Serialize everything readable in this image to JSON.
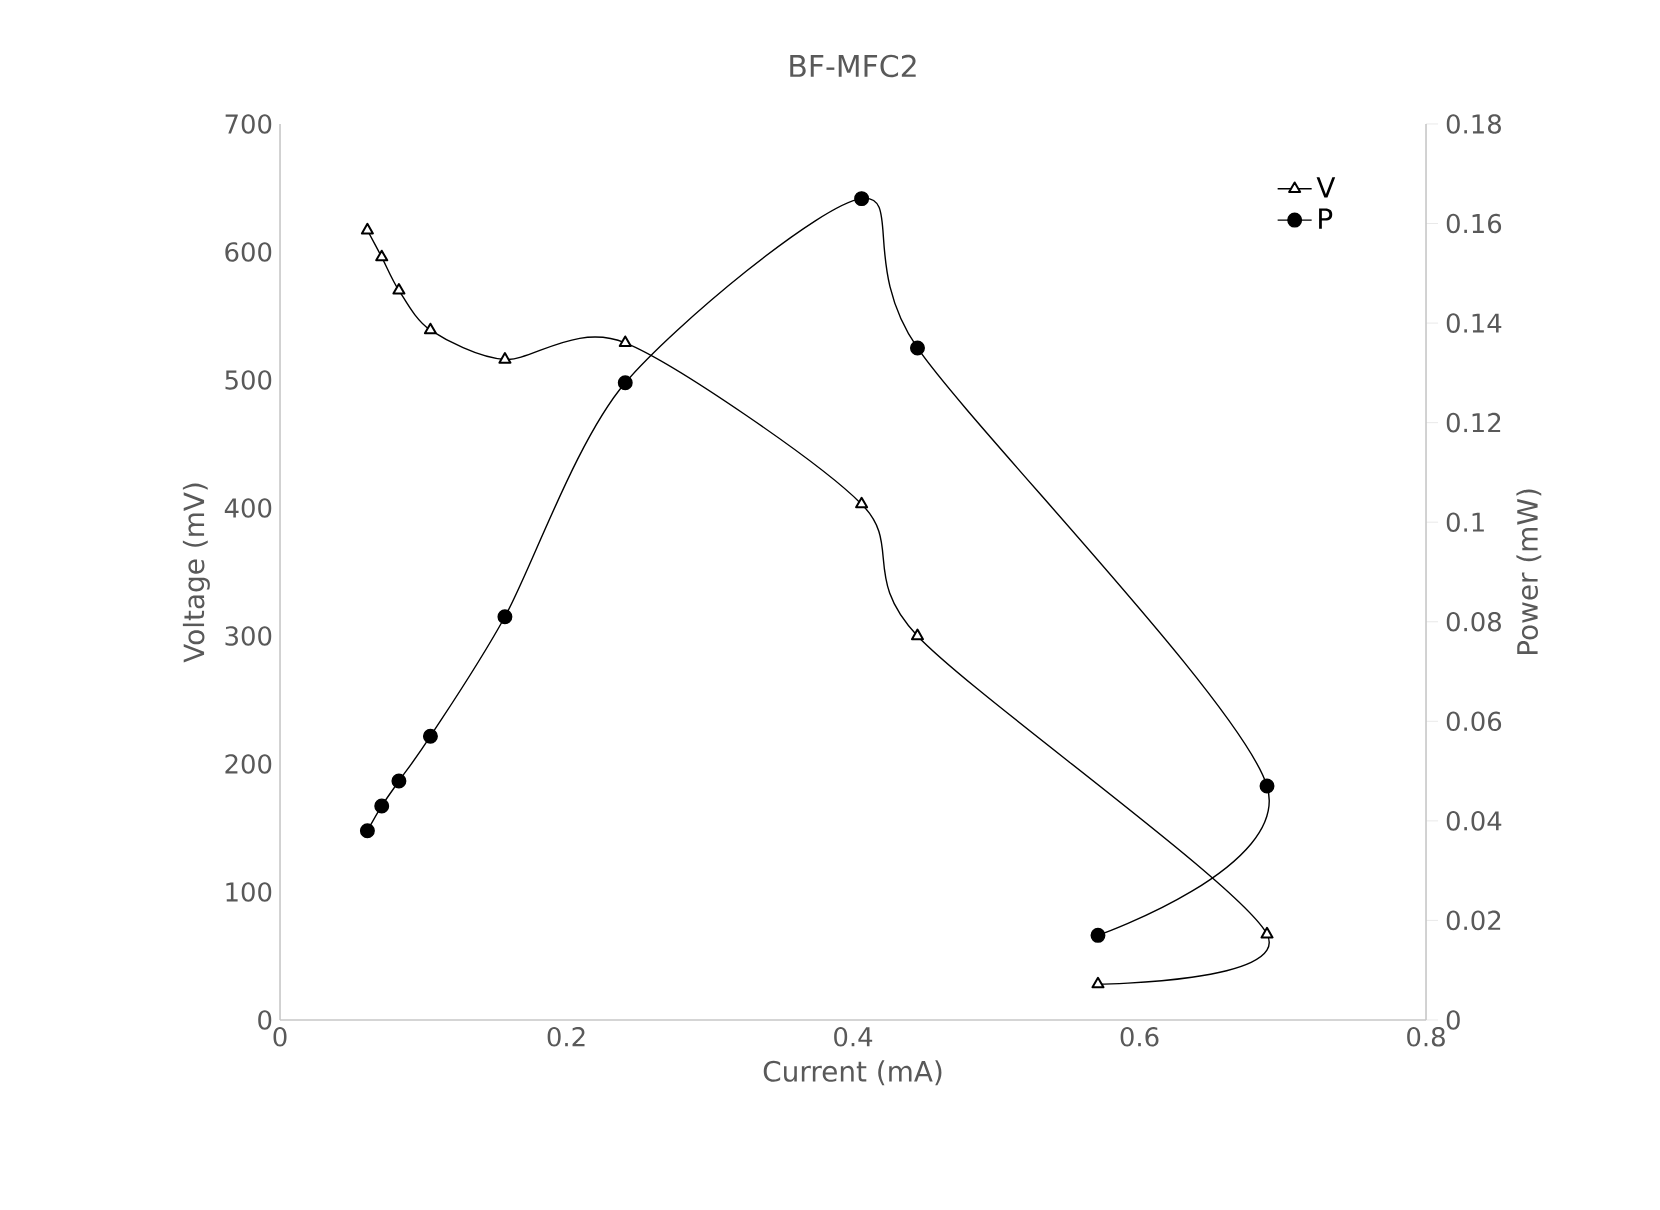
{
  "chart_data": {
    "type": "line",
    "title": "BF-MFC2",
    "xlabel": "Current (mA)",
    "ylabel": "Voltage (mV)",
    "y2label": "Power (mW)",
    "x": [
      0.061,
      0.071,
      0.083,
      0.105,
      0.157,
      0.241,
      0.406,
      0.445,
      0.689,
      0.571
    ],
    "series": [
      {
        "name": "V",
        "color": "#000000",
        "marker": "triangle",
        "values": [
          617,
          596,
          570,
          539,
          516,
          529,
          403,
          300,
          67,
          28
        ]
      },
      {
        "name": "P",
        "color": "#000000",
        "marker": "circle",
        "axis": "y2",
        "values": [
          0.038,
          0.043,
          0.048,
          0.057,
          0.081,
          0.128,
          0.165,
          0.135,
          0.047,
          0.017
        ]
      }
    ],
    "xlim": [
      0,
      0.8
    ],
    "xticks": [
      0,
      0.2,
      0.4,
      0.6,
      0.8
    ],
    "ylim": [
      0,
      700
    ],
    "yticks": [
      0,
      100,
      200,
      300,
      400,
      500,
      600,
      700
    ],
    "y2lim": [
      0,
      0.18
    ],
    "y2ticks": [
      0,
      0.02,
      0.04,
      0.06,
      0.08,
      0.1,
      0.12,
      0.14,
      0.16,
      0.18
    ],
    "legend": "top right",
    "grid": false,
    "line_style": "solid"
  }
}
